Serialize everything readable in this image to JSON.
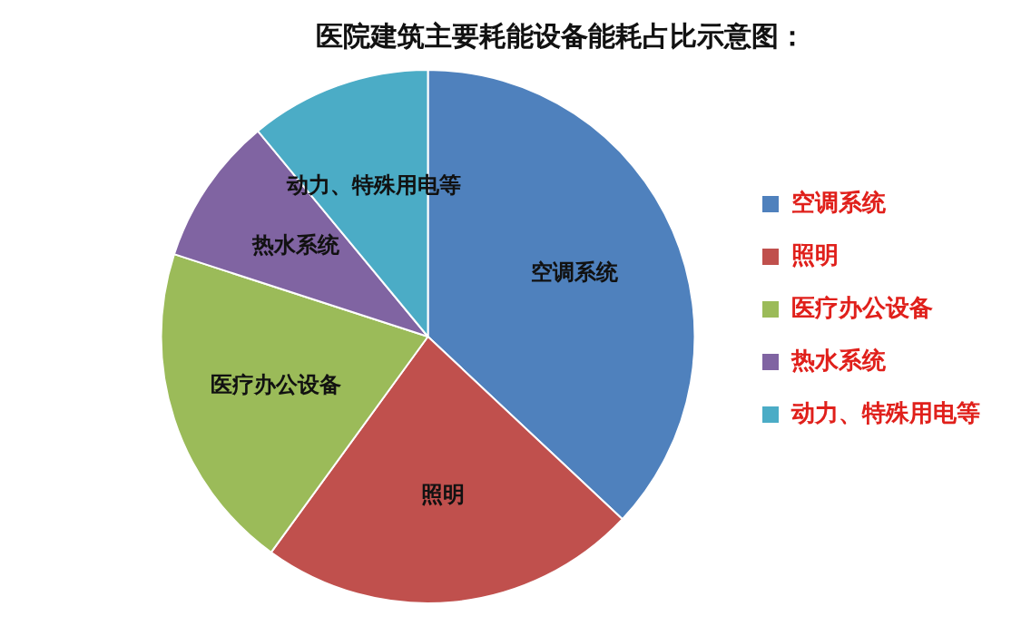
{
  "chart_data": {
    "type": "pie",
    "title": "医院建筑主要耗能设备能耗占比示意图：",
    "categories": [
      "空调系统",
      "照明",
      "医疗办公设备",
      "热水系统",
      "动力、特殊用电等"
    ],
    "values": [
      37,
      23,
      20,
      9,
      11
    ],
    "colors": [
      "#4f81bd",
      "#c0504d",
      "#9bbb59",
      "#8064a2",
      "#4bacc6"
    ],
    "legend": "right"
  }
}
